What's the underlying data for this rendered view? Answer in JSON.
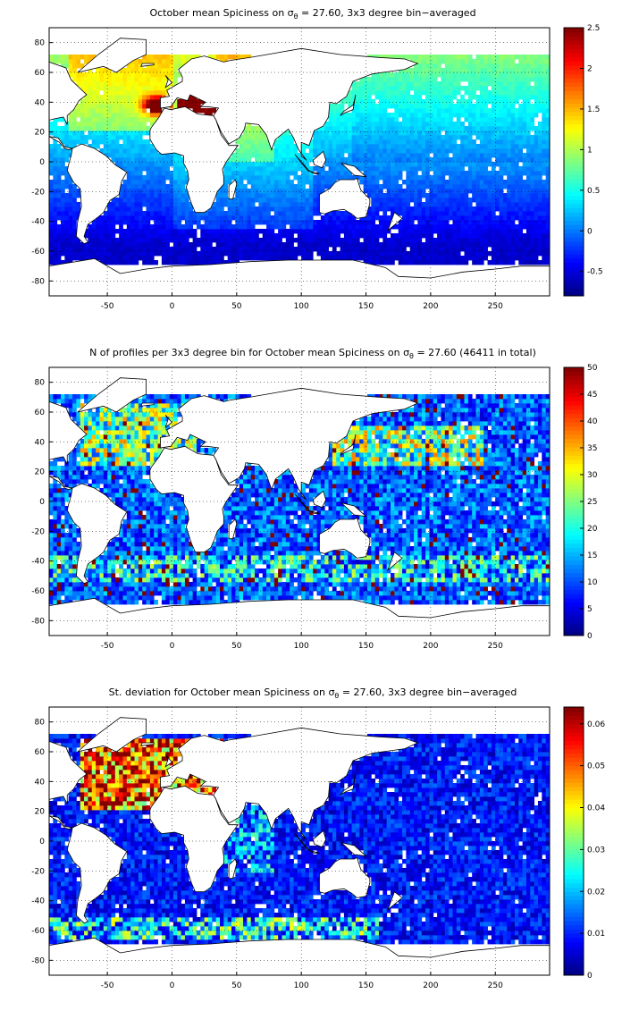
{
  "chart_data": [
    {
      "type": "heatmap",
      "title_pre": "October mean Spiciness on",
      "title_sigma": "σ",
      "title_sub": "θ",
      "title_post": " = 27.60, 3x3 degree bin−averaged",
      "xticks": [
        -50,
        0,
        50,
        100,
        150,
        200,
        250
      ],
      "yticks": [
        80,
        60,
        40,
        20,
        0,
        -20,
        -40,
        -60,
        -80
      ],
      "xlim": [
        -95,
        292
      ],
      "ylim": [
        -90,
        90
      ],
      "colorbar": {
        "min": -0.8,
        "max": 2.5,
        "ticks": [
          "2.5",
          "2",
          "1.5",
          "1",
          "0.5",
          "0",
          "-0.5"
        ],
        "tick_values": [
          2.5,
          2,
          1.5,
          1,
          0.5,
          0,
          -0.5
        ]
      },
      "grid": true,
      "field": "spice"
    },
    {
      "type": "heatmap",
      "title_pre": "N of profiles per 3x3 degree bin for October mean Spiciness on",
      "title_sigma": "σ",
      "title_sub": "θ",
      "title_post": " = 27.60 (46411 in total)",
      "xticks": [
        -50,
        0,
        50,
        100,
        150,
        200,
        250
      ],
      "yticks": [
        80,
        60,
        40,
        20,
        0,
        -20,
        -40,
        -60,
        -80
      ],
      "xlim": [
        -95,
        292
      ],
      "ylim": [
        -90,
        90
      ],
      "colorbar": {
        "min": 0,
        "max": 50,
        "ticks": [
          "50",
          "45",
          "40",
          "35",
          "30",
          "25",
          "20",
          "15",
          "10",
          "5",
          "0"
        ],
        "tick_values": [
          50,
          45,
          40,
          35,
          30,
          25,
          20,
          15,
          10,
          5,
          0
        ]
      },
      "grid": true,
      "field": "count"
    },
    {
      "type": "heatmap",
      "title_pre": "St. deviation for October mean Spiciness on",
      "title_sigma": "σ",
      "title_sub": "θ",
      "title_post": " = 27.60, 3x3 degree bin−averaged",
      "xticks": [
        -50,
        0,
        50,
        100,
        150,
        200,
        250
      ],
      "yticks": [
        80,
        60,
        40,
        20,
        0,
        -20,
        -40,
        -60,
        -80
      ],
      "xlim": [
        -95,
        292
      ],
      "ylim": [
        -90,
        90
      ],
      "colorbar": {
        "min": 0,
        "max": 0.064,
        "ticks": [
          "0.06",
          "0.05",
          "0.04",
          "0.03",
          "0.02",
          "0.01",
          "0"
        ],
        "tick_values": [
          0.06,
          0.05,
          0.04,
          0.03,
          0.02,
          0.01,
          0
        ]
      },
      "grid": true,
      "field": "std"
    }
  ]
}
